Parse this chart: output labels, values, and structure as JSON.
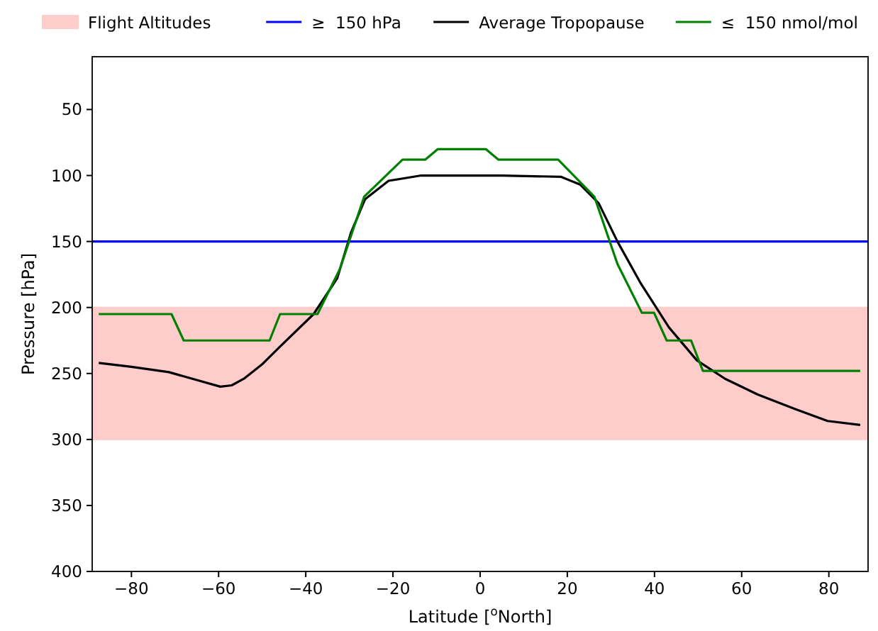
{
  "chart_data": {
    "type": "line",
    "xlabel": "Latitude [$^{o}$North]",
    "ylabel": "Pressure [hPa]",
    "xlim": [
      -89,
      89
    ],
    "xticks": [
      -80,
      -60,
      -40,
      -20,
      0,
      20,
      40,
      60,
      80
    ],
    "ylim": [
      400,
      10
    ],
    "yticks": [
      50,
      100,
      150,
      200,
      250,
      300,
      350,
      400
    ],
    "grid": false,
    "legend": "top",
    "bands": [
      {
        "axis": "y",
        "from": 200,
        "to": 300,
        "label": "Flight Altitudes",
        "color": "#ffcccc"
      }
    ],
    "ref_lines": [
      {
        "axis": "y",
        "value": 150,
        "label": "≥  150 hPa",
        "color": "#0000ff"
      }
    ],
    "series": [
      {
        "name": "Average Tropopause",
        "color": "#000000",
        "x": [
          -87.5,
          -80,
          -71.4,
          -65,
          -59.6,
          -57,
          -54.2,
          -50,
          -45.7,
          -38.2,
          -32.8,
          -29.6,
          -26.4,
          -21,
          -13.5,
          -4.9,
          5,
          18.6,
          23,
          27.2,
          31.5,
          36.9,
          43.3,
          49.7,
          56.2,
          63.7,
          72.3,
          79.7,
          87.2
        ],
        "values": [
          242,
          245,
          249,
          255,
          260,
          259,
          254,
          243,
          229,
          205,
          178,
          143,
          118,
          104,
          100,
          100,
          100,
          101,
          107,
          121,
          150,
          182,
          215,
          240,
          254,
          266,
          277,
          286,
          289
        ]
      },
      {
        "name": "≤  150 nmol/mol",
        "color": "#008000",
        "x": [
          -87.5,
          -70.8,
          -68,
          -48.3,
          -45.9,
          -37.3,
          -32.2,
          -26.6,
          -17.8,
          -12.6,
          -9.7,
          1.3,
          4.2,
          17.9,
          26.2,
          31.5,
          37.1,
          39.9,
          42.8,
          48.4,
          51.1,
          87.2
        ],
        "values": [
          205,
          205,
          225,
          225,
          205,
          205,
          171,
          116,
          88,
          88,
          80,
          80,
          88,
          88,
          116,
          167,
          204,
          204,
          225,
          225,
          248,
          248
        ]
      }
    ]
  }
}
